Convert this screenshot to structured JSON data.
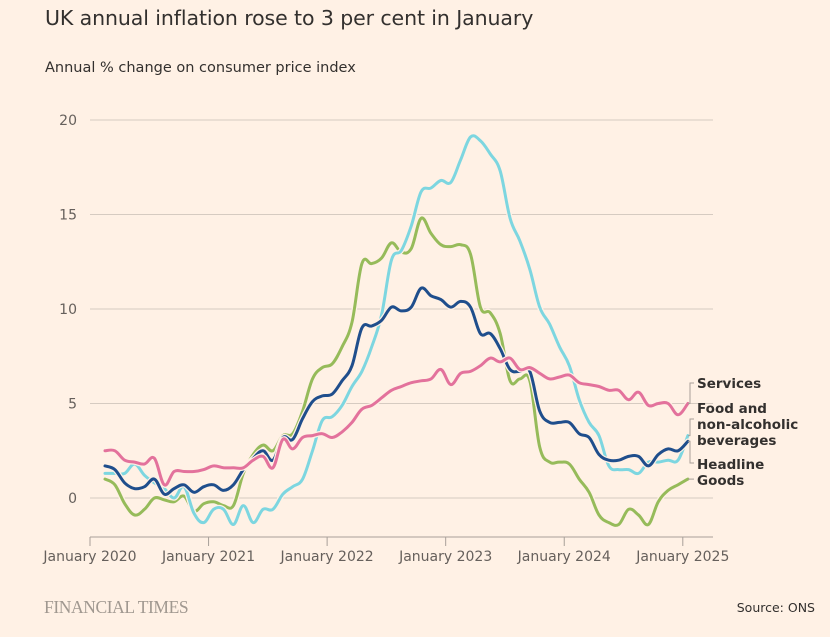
{
  "header": {
    "title": "UK annual inflation rose to 3 per cent in January",
    "subtitle": "Annual % change on consumer price index"
  },
  "footer": {
    "brand": "FINANCIAL TIMES",
    "source": "Source: ONS"
  },
  "chart_data": {
    "type": "line",
    "title": "UK annual inflation rose to 3 per cent in January",
    "subtitle": "Annual % change on consumer price index",
    "xlabel": "",
    "ylabel": "",
    "ylim": [
      0,
      20
    ],
    "yticks": [
      0,
      5,
      10,
      15,
      20
    ],
    "ytick_labels": [
      "0",
      "5",
      "10",
      "15",
      "20"
    ],
    "xticks": [
      "January 2020",
      "January 2021",
      "January 2022",
      "January 2023",
      "January 2024",
      "January 2025"
    ],
    "x_start": "2020-02",
    "x_end": "2025-01",
    "x_frequency": "monthly",
    "grid": true,
    "legend": "direct labels at right end of lines",
    "series": [
      {
        "name": "Services",
        "label_lines": [
          "Services"
        ],
        "color": "#e3729c",
        "values": [
          2.5,
          2.5,
          2.0,
          1.9,
          1.8,
          2.1,
          0.7,
          1.4,
          1.4,
          1.4,
          1.5,
          1.7,
          1.6,
          1.6,
          1.6,
          2.0,
          2.2,
          1.6,
          3.1,
          2.6,
          3.2,
          3.3,
          3.4,
          3.2,
          3.5,
          4.0,
          4.7,
          4.9,
          5.3,
          5.7,
          5.9,
          6.1,
          6.2,
          6.3,
          6.8,
          6.0,
          6.6,
          6.7,
          7.0,
          7.4,
          7.2,
          7.4,
          6.8,
          6.9,
          6.6,
          6.3,
          6.4,
          6.5,
          6.1,
          6.0,
          5.9,
          5.7,
          5.7,
          5.2,
          5.6,
          4.9,
          5.0,
          5.0,
          4.4,
          5.0
        ]
      },
      {
        "name": "Food and non-alcoholic beverages",
        "label_lines": [
          "Food and",
          "non-alcoholic",
          "beverages"
        ],
        "color": "#7dd6e0",
        "values": [
          1.3,
          1.3,
          1.3,
          1.8,
          1.2,
          0.8,
          0.5,
          0.0,
          0.6,
          -0.8,
          -1.3,
          -0.6,
          -0.6,
          -1.4,
          -0.4,
          -1.3,
          -0.6,
          -0.6,
          0.2,
          0.6,
          1.0,
          2.5,
          4.1,
          4.3,
          4.9,
          5.9,
          6.7,
          8.0,
          9.7,
          12.6,
          13.1,
          14.4,
          16.2,
          16.4,
          16.8,
          16.7,
          17.9,
          19.1,
          18.9,
          18.2,
          17.3,
          14.8,
          13.6,
          12.1,
          10.1,
          9.2,
          8.0,
          7.0,
          5.2,
          4.0,
          3.3,
          1.7,
          1.5,
          1.5,
          1.3,
          1.9,
          1.9,
          2.0,
          2.0,
          3.3
        ]
      },
      {
        "name": "Headline",
        "label_lines": [
          "Headline"
        ],
        "color": "#1f4e8c",
        "values": [
          1.7,
          1.5,
          0.8,
          0.5,
          0.6,
          1.0,
          0.2,
          0.5,
          0.7,
          0.3,
          0.6,
          0.7,
          0.4,
          0.7,
          1.5,
          2.1,
          2.5,
          2.0,
          3.2,
          3.1,
          4.2,
          5.1,
          5.4,
          5.5,
          6.2,
          7.0,
          9.0,
          9.1,
          9.4,
          10.1,
          9.9,
          10.1,
          11.1,
          10.7,
          10.5,
          10.1,
          10.4,
          10.1,
          8.7,
          8.7,
          7.9,
          6.8,
          6.7,
          6.7,
          4.6,
          4.0,
          4.0,
          4.0,
          3.4,
          3.2,
          2.3,
          2.0,
          2.0,
          2.2,
          2.2,
          1.7,
          2.3,
          2.6,
          2.5,
          3.0
        ]
      },
      {
        "name": "Goods",
        "label_lines": [
          "Goods"
        ],
        "color": "#96bb5a",
        "values": [
          1.0,
          0.7,
          -0.3,
          -0.9,
          -0.6,
          0.0,
          -0.1,
          -0.2,
          0.1,
          -0.7,
          -0.3,
          -0.2,
          -0.4,
          -0.4,
          1.3,
          2.3,
          2.8,
          2.5,
          3.3,
          3.4,
          4.6,
          6.3,
          6.9,
          7.1,
          8.0,
          9.3,
          12.4,
          12.4,
          12.7,
          13.5,
          13.0,
          13.2,
          14.8,
          14.0,
          13.4,
          13.3,
          13.4,
          12.9,
          10.1,
          9.8,
          8.7,
          6.2,
          6.3,
          6.2,
          2.7,
          1.9,
          1.9,
          1.8,
          1.0,
          0.3,
          -0.9,
          -1.3,
          -1.4,
          -0.6,
          -0.9,
          -1.4,
          -0.2,
          0.4,
          0.7,
          1.0
        ]
      }
    ]
  }
}
